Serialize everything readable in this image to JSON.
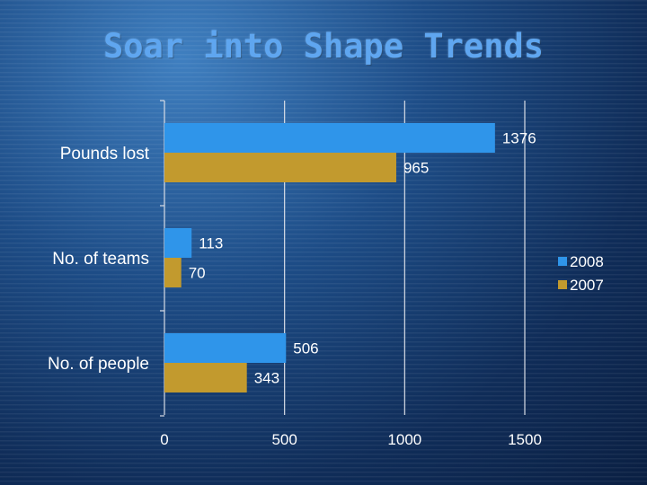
{
  "slide": {
    "title": "Soar into Shape Trends"
  },
  "chart_data": {
    "type": "bar",
    "orientation": "horizontal",
    "categories": [
      "Pounds lost",
      "No. of teams",
      "No. of people"
    ],
    "series": [
      {
        "name": "2008",
        "values": [
          1376,
          113,
          506
        ],
        "color": "#2f95ea"
      },
      {
        "name": "2007",
        "values": [
          965,
          70,
          343
        ],
        "color": "#c29a2e"
      }
    ],
    "xlim": [
      0,
      1500
    ],
    "xticks": [
      0,
      500,
      1000,
      1500
    ],
    "grid": true,
    "legend_position": "right",
    "data_labels": true
  }
}
